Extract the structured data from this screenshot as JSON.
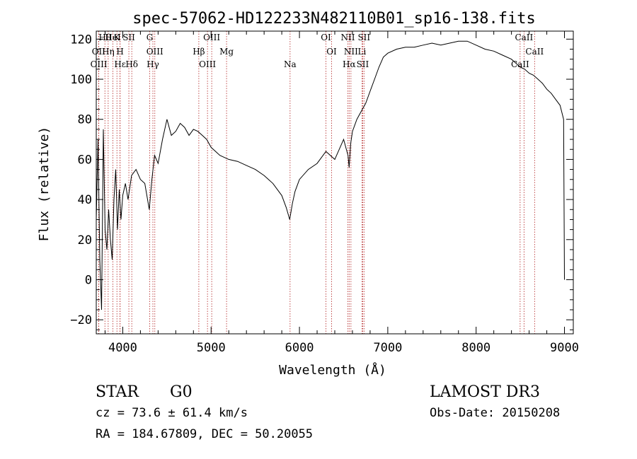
{
  "chart_data": {
    "type": "line",
    "title": "spec-57062-HD122233N482110B01_sp16-138.fits",
    "xlabel": "Wavelength (Å)",
    "ylabel": "Flux (relative)",
    "xlim": [
      3700,
      9100
    ],
    "ylim": [
      -27,
      124
    ],
    "x_ticks": [
      4000,
      5000,
      6000,
      7000,
      8000,
      9000
    ],
    "y_ticks": [
      -20,
      0,
      20,
      40,
      60,
      80,
      100,
      120
    ],
    "x_tick_labels": [
      "4000",
      "5000",
      "6000",
      "7000",
      "8000",
      "9000"
    ],
    "y_tick_labels": [
      "−20",
      "0",
      "20",
      "40",
      "60",
      "80",
      "100",
      "120"
    ],
    "grid": false,
    "series": [
      {
        "name": "spectrum",
        "x": [
          3700,
          3720,
          3740,
          3760,
          3780,
          3800,
          3820,
          3840,
          3860,
          3880,
          3900,
          3920,
          3940,
          3960,
          3980,
          4000,
          4030,
          4060,
          4100,
          4150,
          4200,
          4250,
          4300,
          4330,
          4360,
          4400,
          4450,
          4500,
          4550,
          4600,
          4650,
          4700,
          4750,
          4800,
          4850,
          4900,
          4950,
          5000,
          5100,
          5200,
          5300,
          5400,
          5500,
          5600,
          5700,
          5800,
          5850,
          5890,
          5920,
          5950,
          6000,
          6100,
          6200,
          6300,
          6400,
          6500,
          6550,
          6563,
          6580,
          6600,
          6650,
          6700,
          6750,
          6800,
          6850,
          6900,
          6950,
          7000,
          7100,
          7200,
          7300,
          7400,
          7500,
          7600,
          7700,
          7800,
          7900,
          8000,
          8100,
          8200,
          8300,
          8400,
          8500,
          8550,
          8600,
          8650,
          8700,
          8750,
          8800,
          8850,
          8900,
          8950,
          8990,
          9000
        ],
        "y": [
          30,
          70,
          10,
          -15,
          75,
          25,
          15,
          35,
          20,
          10,
          40,
          55,
          25,
          45,
          30,
          42,
          48,
          40,
          52,
          55,
          50,
          48,
          35,
          50,
          62,
          58,
          70,
          80,
          72,
          74,
          78,
          76,
          72,
          75,
          74,
          72,
          70,
          66,
          62,
          60,
          59,
          57,
          55,
          52,
          48,
          42,
          36,
          30,
          38,
          44,
          50,
          55,
          58,
          64,
          60,
          70,
          62,
          56,
          68,
          74,
          80,
          84,
          88,
          94,
          100,
          106,
          111,
          113,
          115,
          116,
          116,
          117,
          118,
          117,
          118,
          119,
          119,
          117,
          115,
          114,
          112,
          110,
          106,
          105,
          103,
          102,
          100,
          98,
          95,
          93,
          90,
          87,
          80,
          0
        ]
      }
    ],
    "lines": [
      {
        "name": "Hθ",
        "wave": 3798
      },
      {
        "name": "OII",
        "wave": 3727
      },
      {
        "name": "OIII",
        "wave": 3729
      },
      {
        "name": "K",
        "wave": 3934
      },
      {
        "name": "H",
        "wave": 3969
      },
      {
        "name": "Hε",
        "wave": 3970
      },
      {
        "name": "HeI",
        "wave": 3889
      },
      {
        "name": "Hη",
        "wave": 3835
      },
      {
        "name": "Hδ",
        "wave": 4102
      },
      {
        "name": "SII",
        "wave": 4069
      },
      {
        "name": "OIII",
        "wave": 4363
      },
      {
        "name": "Hγ",
        "wave": 4341
      },
      {
        "name": "G",
        "wave": 4305
      },
      {
        "name": "Hβ",
        "wave": 4861
      },
      {
        "name": "OIII",
        "wave": 4959
      },
      {
        "name": "OIII",
        "wave": 5007
      },
      {
        "name": "Mg",
        "wave": 5175
      },
      {
        "name": "Na",
        "wave": 5894
      },
      {
        "name": "OI",
        "wave": 6300
      },
      {
        "name": "OI",
        "wave": 6364
      },
      {
        "name": "Hα",
        "wave": 6563
      },
      {
        "name": "NII",
        "wave": 6548
      },
      {
        "name": "NII",
        "wave": 6583
      },
      {
        "name": "SII",
        "wave": 6716
      },
      {
        "name": "SII",
        "wave": 6731
      },
      {
        "name": "Li",
        "wave": 6708
      },
      {
        "name": "CaII",
        "wave": 8498
      },
      {
        "name": "CaII",
        "wave": 8542
      },
      {
        "name": "CaII",
        "wave": 8662
      }
    ]
  },
  "info": {
    "class_label": "STAR",
    "subclass": "G0",
    "survey": "LAMOST DR3",
    "cz": "cz = 73.6 ± 61.4 km/s",
    "obs_date": "Obs-Date: 20150208",
    "radec": "RA = 184.67809, DEC =  50.20055"
  },
  "colors": {
    "axis": "#000000",
    "spectrum": "#000000",
    "line_marker": "#b22222"
  }
}
